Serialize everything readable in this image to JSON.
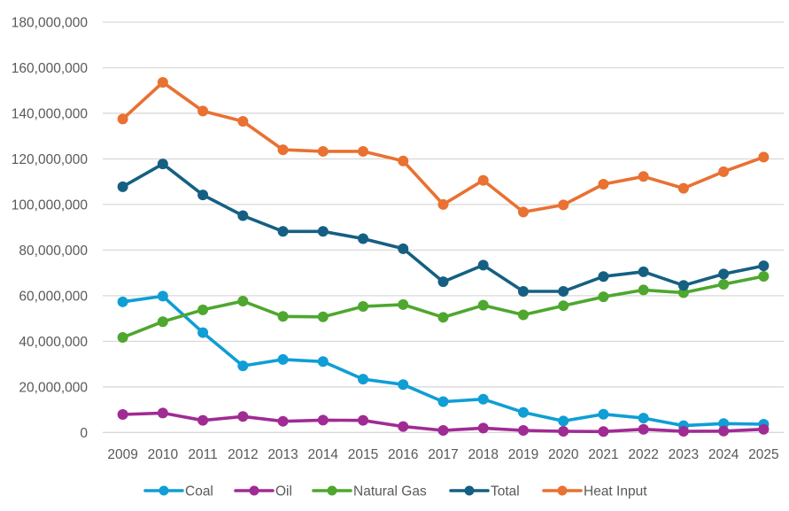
{
  "chart_data": {
    "type": "line",
    "title": "",
    "xlabel": "",
    "ylabel": "",
    "ylim": [
      0,
      180000000
    ],
    "y_tick_step": 20000000,
    "y_tick_labels": [
      "0",
      "20,000,000",
      "40,000,000",
      "60,000,000",
      "80,000,000",
      "100,000,000",
      "120,000,000",
      "140,000,000",
      "160,000,000",
      "180,000,000"
    ],
    "grid": true,
    "legend_position": "bottom",
    "categories": [
      "2009",
      "2010",
      "2011",
      "2012",
      "2013",
      "2014",
      "2015",
      "2016",
      "2017",
      "2018",
      "2019",
      "2020",
      "2021",
      "2022",
      "2023",
      "2024",
      "2025"
    ],
    "series": [
      {
        "name": "Coal",
        "color": "#0F9ED5",
        "values": [
          57300000,
          59800000,
          43800000,
          29200000,
          32000000,
          31100000,
          23400000,
          21000000,
          13500000,
          14600000,
          8800000,
          5000000,
          8000000,
          6300000,
          3000000,
          3900000,
          3600000
        ]
      },
      {
        "name": "Oil",
        "color": "#A02B93",
        "values": [
          7900000,
          8500000,
          5300000,
          7000000,
          4900000,
          5400000,
          5300000,
          2600000,
          900000,
          1900000,
          900000,
          500000,
          400000,
          1400000,
          500000,
          600000,
          1400000
        ]
      },
      {
        "name": "Natural Gas",
        "color": "#4EA72E",
        "values": [
          41700000,
          48600000,
          53800000,
          57600000,
          50900000,
          50700000,
          55300000,
          56100000,
          50500000,
          55800000,
          51600000,
          55600000,
          59500000,
          62500000,
          61300000,
          65000000,
          68500000
        ]
      },
      {
        "name": "Total",
        "color": "#156082",
        "values": [
          107800000,
          117800000,
          104200000,
          95100000,
          88200000,
          88200000,
          85000000,
          80600000,
          66100000,
          73400000,
          61900000,
          61900000,
          68400000,
          70500000,
          64500000,
          69500000,
          73100000
        ]
      },
      {
        "name": "Heat Input",
        "color": "#E97132",
        "values": [
          137500000,
          153600000,
          141000000,
          136500000,
          124000000,
          123300000,
          123300000,
          119100000,
          100000000,
          110600000,
          96700000,
          99800000,
          108900000,
          112300000,
          107100000,
          114400000,
          120800000
        ]
      }
    ]
  }
}
